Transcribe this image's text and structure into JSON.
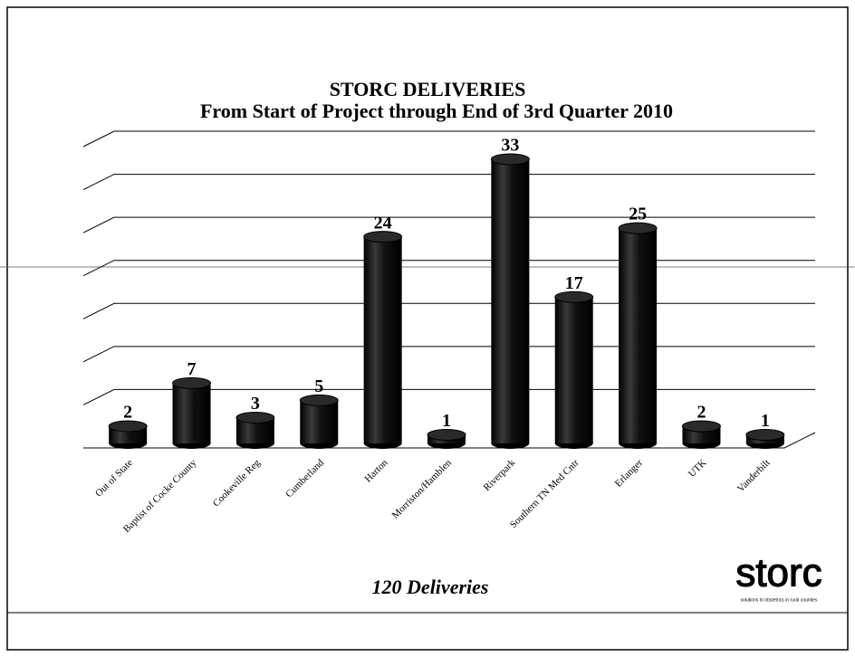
{
  "chart_data": {
    "type": "bar",
    "title": "STORC DELIVERIES",
    "subtitle": "From Start of Project through End of 3rd Quarter 2010",
    "categories": [
      "Out of State",
      "Baptist of Cocke County",
      "Cookeville Reg",
      "Cumberland",
      "Harton",
      "Morriston/Hamblen",
      "Riverpark",
      "Southern TN Med Cntr",
      "Erlanger",
      "UTK",
      "Vanderbilt"
    ],
    "values": [
      2,
      7,
      3,
      5,
      24,
      1,
      33,
      17,
      25,
      2,
      1
    ],
    "color": "#111111",
    "ylim": [
      0,
      35
    ],
    "yticks": [
      0,
      5,
      10,
      15,
      20,
      25,
      30,
      35
    ],
    "grid": true,
    "annotation": "120 Deliveries",
    "logo": "storc",
    "logo_tagline": "solutions to obstetrics in rural counties"
  }
}
